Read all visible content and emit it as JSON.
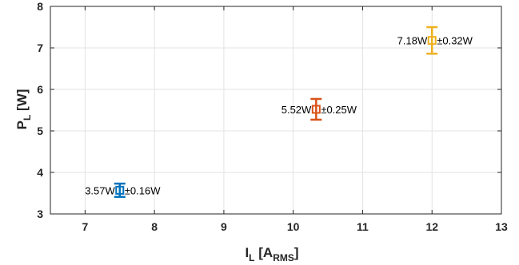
{
  "chart_data": {
    "type": "scatter",
    "title": "",
    "xlabel": {
      "main": "I",
      "sub": "L",
      "bracket_open": "[A",
      "bracket_sub": "RMS",
      "bracket_close": "]"
    },
    "ylabel": {
      "main": "P",
      "sub": "L",
      "rest": "[W]"
    },
    "xlim": [
      6.5,
      13
    ],
    "ylim": [
      3,
      8
    ],
    "xticks": [
      7,
      8,
      9,
      10,
      11,
      12,
      13
    ],
    "yticks": [
      3,
      4,
      5,
      6,
      7,
      8
    ],
    "grid": true,
    "series": [
      {
        "x": 7.5,
        "y": 3.57,
        "error": 0.16,
        "color": "#0072BD",
        "label": "3.57W",
        "error_label": "±0.16W"
      },
      {
        "x": 10.33,
        "y": 5.52,
        "error": 0.25,
        "color": "#D95319",
        "label": "5.52W",
        "error_label": "±0.25W"
      },
      {
        "x": 12.0,
        "y": 7.18,
        "error": 0.32,
        "color": "#EDB120",
        "label": "7.18W",
        "error_label": "±0.32W"
      }
    ]
  }
}
